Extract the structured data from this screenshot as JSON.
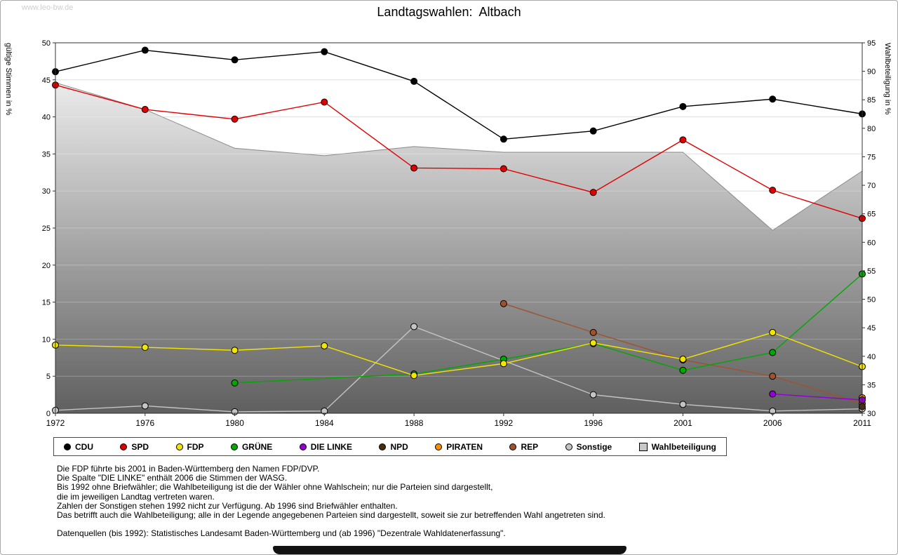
{
  "page": {
    "watermark": "www.leo-bw.de",
    "title": "Landtagswahlen:  Altbach"
  },
  "chart_data": {
    "type": "line",
    "title": "Landtagswahlen: Altbach",
    "x": [
      1972,
      1976,
      1980,
      1984,
      1988,
      1992,
      1996,
      2001,
      2006,
      2011
    ],
    "xlabel": "",
    "ylabel_left": "gültige Stimmen in %",
    "ylabel_right": "Wahlbeteiligung in %",
    "ylim_left": [
      0,
      50
    ],
    "ylim_right": [
      30,
      95
    ],
    "yticks_left": [
      0,
      5,
      10,
      15,
      20,
      25,
      30,
      35,
      40,
      45,
      50
    ],
    "yticks_right": [
      30,
      35,
      40,
      45,
      50,
      55,
      60,
      65,
      70,
      75,
      80,
      85,
      90,
      95
    ],
    "grid": "horizontal",
    "legend_position": "bottom",
    "series": [
      {
        "name": "CDU",
        "axis": "left",
        "color": "#000000",
        "values": [
          46.1,
          49.0,
          47.7,
          48.8,
          44.8,
          37.0,
          38.1,
          41.4,
          42.4,
          40.4
        ]
      },
      {
        "name": "SPD",
        "axis": "left",
        "color": "#e10000",
        "values": [
          44.3,
          41.0,
          39.7,
          42.0,
          33.1,
          33.0,
          29.8,
          36.9,
          30.1,
          26.3
        ]
      },
      {
        "name": "FDP",
        "axis": "left",
        "color": "#f2e500",
        "values": [
          9.2,
          8.9,
          8.5,
          9.1,
          5.1,
          6.7,
          9.5,
          7.3,
          10.9,
          6.3
        ]
      },
      {
        "name": "GRÜNE",
        "axis": "left",
        "color": "#00a800",
        "values": [
          null,
          null,
          4.1,
          null,
          5.3,
          7.3,
          9.4,
          5.8,
          8.2,
          18.8
        ]
      },
      {
        "name": "DIE LINKE",
        "axis": "left",
        "color": "#9400d3",
        "values": [
          null,
          null,
          null,
          null,
          null,
          null,
          null,
          null,
          2.6,
          1.8
        ]
      },
      {
        "name": "NPD",
        "axis": "left",
        "color": "#4a2d0f",
        "values": [
          null,
          null,
          null,
          null,
          null,
          null,
          null,
          null,
          null,
          0.9
        ]
      },
      {
        "name": "PIRATEN",
        "axis": "left",
        "color": "#ff8c00",
        "values": [
          null,
          null,
          null,
          null,
          null,
          null,
          null,
          null,
          null,
          2.1
        ]
      },
      {
        "name": "REP",
        "axis": "left",
        "color": "#a0522d",
        "values": [
          null,
          null,
          null,
          null,
          null,
          14.8,
          10.9,
          7.2,
          5.0,
          1.3
        ]
      },
      {
        "name": "Sonstige",
        "axis": "left",
        "color": "#c4c4c4",
        "values": [
          0.4,
          1.0,
          0.2,
          0.3,
          11.7,
          null,
          2.5,
          1.2,
          0.3,
          0.6
        ]
      }
    ],
    "area": {
      "name": "Wahlbeteiligung",
      "axis": "right",
      "values": [
        88.0,
        83.3,
        76.5,
        75.2,
        76.8,
        75.8,
        75.8,
        75.8,
        62.1,
        72.5
      ],
      "color_line": "#8a8a8a",
      "gradient_top": "#fcfcfc",
      "gradient_bottom": "#5f5f5f",
      "swatch": "#c8c8c8"
    }
  },
  "notes": [
    "Die FDP führte bis 2001 in Baden-Württemberg den Namen FDP/DVP.",
    "Die Spalte \"DIE LINKE\" enthält 2006 die Stimmen der WASG.",
    "Bis 1992 ohne Briefwähler; die Wahlbeteiligung ist die der Wähler ohne Wahlschein; nur die Parteien sind dargestellt,",
    "die im jeweiligen Landtag vertreten waren.",
    "Zahlen der Sonstigen stehen 1992 nicht zur Verfügung. Ab 1996 sind Briefwähler enthalten.",
    "Das betrifft auch die Wahlbeteiligung; alle in der Legende angegebenen Parteien sind dargestellt, soweit sie zur betreffenden Wahl angetreten sind.",
    "",
    "Datenquellen (bis 1992): Statistisches Landesamt Baden-Württemberg und (ab 1996) \"Dezentrale Wahldatenerfassung\"."
  ]
}
